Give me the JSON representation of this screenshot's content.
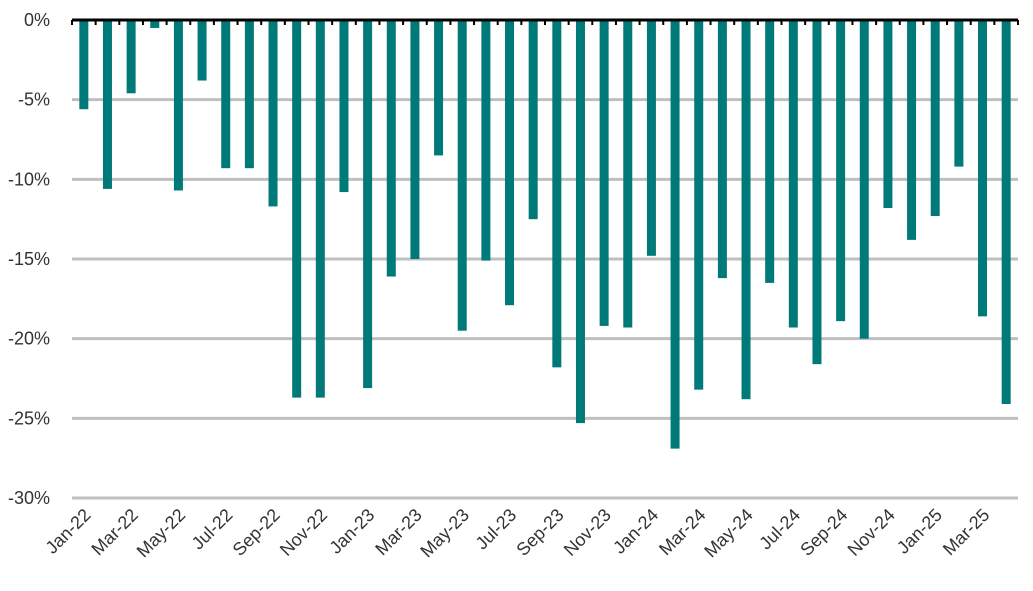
{
  "chart_data": {
    "type": "bar",
    "title": "",
    "xlabel": "",
    "ylabel": "",
    "ylim": [
      -30,
      0
    ],
    "y_ticks": [
      0,
      -5,
      -10,
      -15,
      -20,
      -25,
      -30
    ],
    "y_tick_labels": [
      "0%",
      "-5%",
      "-10%",
      "-15%",
      "-20%",
      "-25%",
      "-30%"
    ],
    "grid": true,
    "legend": "none",
    "bar_color": "#007a78",
    "grid_color": "#bfbfbf",
    "axis_color": "#000000",
    "categories": [
      "Jan-22",
      "Feb-22",
      "Mar-22",
      "Apr-22",
      "May-22",
      "Jun-22",
      "Jul-22",
      "Aug-22",
      "Sep-22",
      "Oct-22",
      "Nov-22",
      "Dec-22",
      "Jan-23",
      "Feb-23",
      "Mar-23",
      "Apr-23",
      "May-23",
      "Jun-23",
      "Jul-23",
      "Aug-23",
      "Sep-23",
      "Oct-23",
      "Nov-23",
      "Dec-23",
      "Jan-24",
      "Feb-24",
      "Mar-24",
      "Apr-24",
      "May-24",
      "Jun-24",
      "Jul-24",
      "Aug-24",
      "Sep-24",
      "Oct-24",
      "Nov-24",
      "Dec-24",
      "Jan-25",
      "Feb-25",
      "Mar-25",
      "Apr-25"
    ],
    "values": [
      -5.6,
      -10.6,
      -4.6,
      -0.5,
      -10.7,
      -3.8,
      -9.3,
      -9.3,
      -11.7,
      -23.7,
      -23.7,
      -10.8,
      -23.1,
      -16.1,
      -15.0,
      -8.5,
      -19.5,
      -15.1,
      -17.9,
      -12.5,
      -21.8,
      -25.3,
      -19.2,
      -19.3,
      -14.8,
      -26.9,
      -23.2,
      -16.2,
      -23.8,
      -16.5,
      -19.3,
      -21.6,
      -18.9,
      -20.0,
      -11.8,
      -13.8,
      -12.3,
      -9.2,
      -18.6,
      -24.1
    ],
    "x_tick_labels": [
      "Jan-22",
      "Mar-22",
      "May-22",
      "Jul-22",
      "Sep-22",
      "Nov-22",
      "Jan-23",
      "Mar-23",
      "May-23",
      "Jul-23",
      "Sep-23",
      "Nov-23",
      "Jan-24",
      "Mar-24",
      "May-24",
      "Jul-24",
      "Sep-24",
      "Nov-24",
      "Jan-25",
      "Mar-25"
    ]
  }
}
